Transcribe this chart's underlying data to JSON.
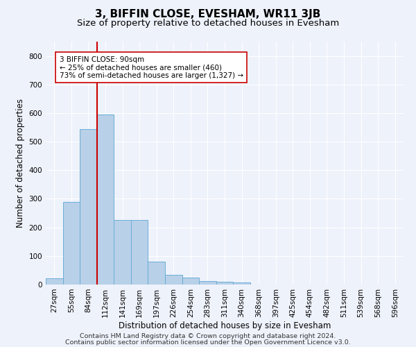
{
  "title": "3, BIFFIN CLOSE, EVESHAM, WR11 3JB",
  "subtitle": "Size of property relative to detached houses in Evesham",
  "xlabel": "Distribution of detached houses by size in Evesham",
  "ylabel": "Number of detached properties",
  "footnote1": "Contains HM Land Registry data © Crown copyright and database right 2024.",
  "footnote2": "Contains public sector information licensed under the Open Government Licence v3.0.",
  "categories": [
    "27sqm",
    "55sqm",
    "84sqm",
    "112sqm",
    "141sqm",
    "169sqm",
    "197sqm",
    "226sqm",
    "254sqm",
    "283sqm",
    "311sqm",
    "340sqm",
    "368sqm",
    "397sqm",
    "425sqm",
    "454sqm",
    "482sqm",
    "511sqm",
    "539sqm",
    "568sqm",
    "596sqm"
  ],
  "values": [
    22,
    290,
    545,
    595,
    225,
    225,
    80,
    35,
    25,
    12,
    10,
    8,
    0,
    0,
    0,
    0,
    0,
    0,
    0,
    0,
    0
  ],
  "bar_color": "#b8d0e8",
  "bar_edge_color": "#6aaed6",
  "vline_color": "#cc0000",
  "annotation_text": "3 BIFFIN CLOSE: 90sqm\n← 25% of detached houses are smaller (460)\n73% of semi-detached houses are larger (1,327) →",
  "annotation_box_color": "#ffffff",
  "annotation_box_edge": "#cc0000",
  "ylim": [
    0,
    850
  ],
  "yticks": [
    0,
    100,
    200,
    300,
    400,
    500,
    600,
    700,
    800
  ],
  "background_color": "#eef2fb",
  "grid_color": "#ffffff",
  "title_fontsize": 11,
  "subtitle_fontsize": 9.5,
  "axis_label_fontsize": 8.5,
  "tick_fontsize": 7.5,
  "footnote_fontsize": 6.8
}
